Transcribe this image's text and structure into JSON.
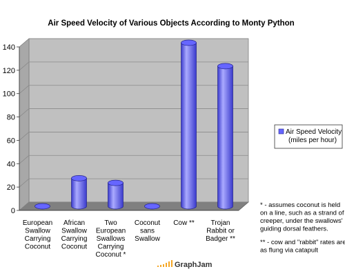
{
  "chart_data": {
    "type": "bar",
    "title": "Air Speed Velocity of Various Objects According to Monty Python",
    "xlabel": "",
    "ylabel": "",
    "ylim": [
      0,
      140
    ],
    "yticks": [
      "0",
      "20",
      "40",
      "60",
      "80",
      "100",
      "120",
      "140"
    ],
    "grid": true,
    "legend_position": "right",
    "categories": [
      [
        "European",
        "Swallow",
        "Carrying",
        "Coconut"
      ],
      [
        "African",
        "Swallow",
        "Carrying",
        "Coconut"
      ],
      [
        "Two",
        "European",
        "Swallows",
        "Carrying",
        "Coconut *"
      ],
      [
        "Coconut",
        "sans",
        "Swallow"
      ],
      [
        "Cow **"
      ],
      [
        "Trojan",
        "Rabbit or",
        "Badger **"
      ]
    ],
    "series": [
      {
        "name": [
          "Air Speed Velocity",
          "(miles per hour)"
        ],
        "values": [
          0,
          24,
          20,
          0,
          140,
          120
        ],
        "color": "#6666ff"
      }
    ]
  },
  "footnotes": [
    [
      "* - assumes coconut is held",
      "on a line, such as a strand of",
      "creeper, under the swallows'",
      "guiding dorsal feathers."
    ],
    [
      "** - cow and \"rabbit\" rates are",
      "as flung via catapult"
    ]
  ],
  "watermark": "GraphJam",
  "colors": {
    "bar": "#6666ff",
    "bar_dark": "#3b3bcc",
    "bar_light": "#aaaaff",
    "plot_back": "#c0c0c0",
    "plot_floor": "#808080",
    "watermark_bar": "#f5a623"
  }
}
